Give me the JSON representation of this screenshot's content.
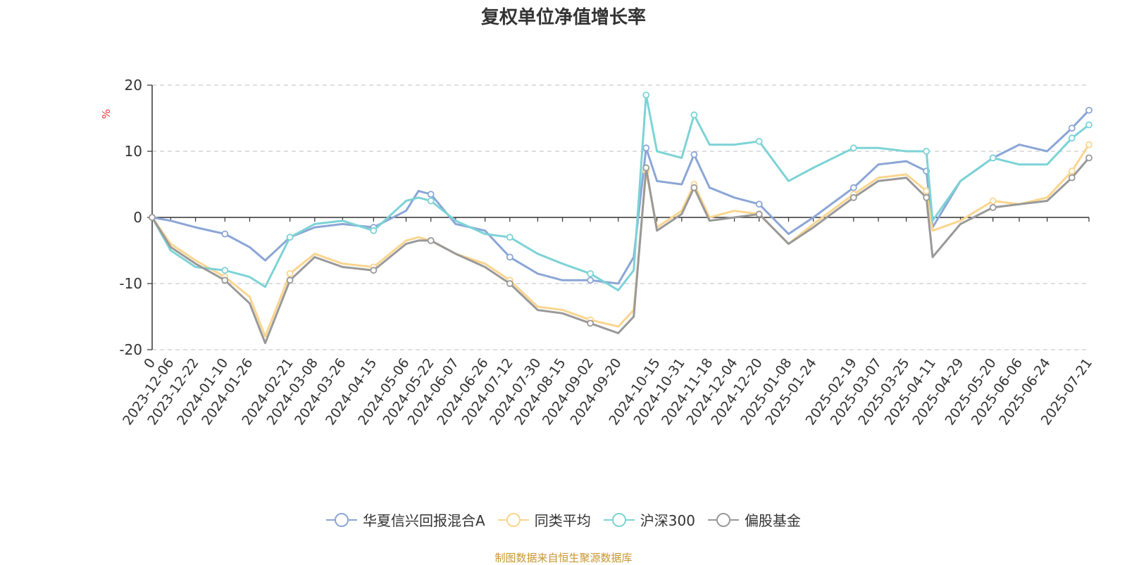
{
  "chart_data": {
    "type": "line",
    "title": "复权单位净值增长率",
    "ylabel": "%",
    "ylim": [
      -20,
      20
    ],
    "yticks": [
      20,
      10,
      0,
      -10,
      -20
    ],
    "grid": true,
    "legend_position": "bottom",
    "x_tick_labels": [
      "0",
      "2023-12-06",
      "2023-12-22",
      "2024-01-10",
      "2024-01-26",
      "2024-02-21",
      "2024-03-08",
      "2024-03-26",
      "2024-04-15",
      "2024-05-06",
      "2024-05-22",
      "2024-06-07",
      "2024-06-26",
      "2024-07-12",
      "2024-07-30",
      "2024-08-15",
      "2024-09-02",
      "2024-09-20",
      "2024-10-15",
      "2024-10-31",
      "2024-11-18",
      "2024-12-04",
      "2024-12-20",
      "2025-01-08",
      "2025-01-24",
      "2025-02-19",
      "2025-03-07",
      "2025-03-25",
      "2025-04-11",
      "2025-04-29",
      "2025-05-20",
      "2025-06-06",
      "2025-06-24",
      "2025-07-21"
    ],
    "x": [
      "0",
      "2023-12-06",
      "2023-12-22",
      "2024-01-10",
      "2024-01-26",
      "2024-02-05",
      "2024-02-21",
      "2024-03-08",
      "2024-03-26",
      "2024-04-15",
      "2024-05-06",
      "2024-05-14",
      "2024-05-22",
      "2024-06-07",
      "2024-06-26",
      "2024-07-12",
      "2024-07-30",
      "2024-08-15",
      "2024-09-02",
      "2024-09-20",
      "2024-09-30",
      "2024-10-08",
      "2024-10-15",
      "2024-10-31",
      "2024-11-08",
      "2024-11-18",
      "2024-12-04",
      "2024-12-20",
      "2025-01-08",
      "2025-01-24",
      "2025-02-19",
      "2025-03-07",
      "2025-03-25",
      "2025-04-07",
      "2025-04-11",
      "2025-04-29",
      "2025-05-20",
      "2025-06-06",
      "2025-06-24",
      "2025-07-10",
      "2025-07-21"
    ],
    "series": [
      {
        "name": "华夏信兴回报混合A",
        "color": "#8ba6d6",
        "values": [
          0,
          -0.5,
          -1.5,
          -2.5,
          -4.5,
          -6.5,
          -3,
          -1.5,
          -1,
          -1.5,
          1,
          4,
          3.5,
          -1,
          -2,
          -6,
          -8.5,
          -9.5,
          -9.5,
          -10,
          -6,
          10.5,
          5.5,
          5,
          9.5,
          4.5,
          3,
          2,
          -2.5,
          0,
          4.5,
          8,
          8.5,
          7,
          -1.5,
          5.5,
          9,
          11,
          10,
          13.5,
          16.2
        ]
      },
      {
        "name": "同类平均",
        "color": "#fbd58e",
        "values": [
          0,
          -4,
          -6.5,
          -9,
          -12,
          -18,
          -8.5,
          -5.5,
          -7,
          -7.5,
          -3.5,
          -3,
          -3.5,
          -5.5,
          -7,
          -9.5,
          -13.5,
          -14,
          -15.5,
          -16.5,
          -14,
          7,
          -1.5,
          1,
          5,
          0,
          1,
          0.5,
          -4,
          -1,
          3.5,
          6,
          6.5,
          4,
          -2,
          -0.5,
          2.5,
          2,
          3,
          7,
          11
        ]
      },
      {
        "name": "沪深300",
        "color": "#7dd3d6",
        "values": [
          0,
          -5,
          -7.5,
          -8,
          -9,
          -10.5,
          -3,
          -1,
          -0.5,
          -2,
          2.5,
          3,
          2.5,
          -0.5,
          -2.5,
          -3,
          -5.5,
          -7,
          -8.5,
          -11,
          -8,
          18.5,
          10,
          9,
          15.5,
          11,
          11,
          11.5,
          5.5,
          7.5,
          10.5,
          10.5,
          10,
          10,
          -0.5,
          5.5,
          9,
          8,
          8,
          12,
          14
        ]
      },
      {
        "name": "偏股基金",
        "color": "#999999",
        "values": [
          0,
          -4.5,
          -7,
          -9.5,
          -13,
          -19,
          -9.5,
          -6,
          -7.5,
          -8,
          -4,
          -3.5,
          -3.5,
          -5.5,
          -7.5,
          -10,
          -14,
          -14.5,
          -16,
          -17.5,
          -15,
          7.5,
          -2,
          0.5,
          4.5,
          -0.5,
          0,
          0.5,
          -4,
          -1.5,
          3,
          5.5,
          6,
          3,
          -6,
          -1,
          1.5,
          2,
          2.5,
          6,
          9
        ]
      }
    ]
  },
  "footer": {
    "source_note": "制图数据来自恒生聚源数据库"
  }
}
